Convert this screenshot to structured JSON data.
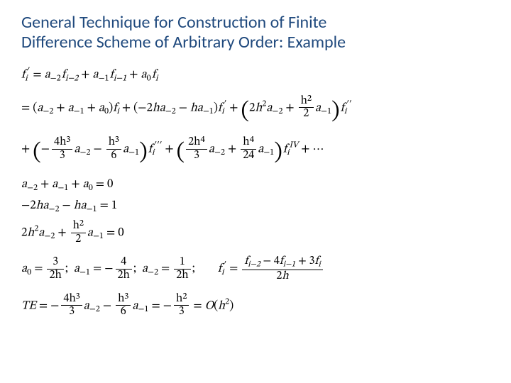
{
  "title_color": "#1f497d",
  "title_line1": "General Technique for Construction of Finite",
  "title_line2": "Difference Scheme of Arbitrary Order: Example",
  "eq1_lhs": "f",
  "eq1_lhs_sub": "i",
  "eq1_lhs_sup": "′",
  "eq1_rhs_a": "a",
  "eq1_rhs_f": "f",
  "subs": {
    "m2": "−2",
    "m1": "−1",
    "z": "0",
    "im2": "i−2",
    "im1": "i−1",
    "i": "i"
  },
  "frac_h2_2": {
    "num": "h²",
    "den": "2"
  },
  "frac_4h3_3": {
    "num": "4h³",
    "den": "3"
  },
  "frac_h3_6": {
    "num": "h³",
    "den": "6"
  },
  "frac_2h4_3": {
    "num": "2h⁴",
    "den": "3"
  },
  "frac_h4_24": {
    "num": "h⁴",
    "den": "24"
  },
  "sol_a0": {
    "num": "3",
    "den": "2h"
  },
  "sol_am1": {
    "num": "4",
    "den": "2h"
  },
  "sol_am2": {
    "num": "1",
    "den": "2h"
  },
  "result_frac": {
    "num": "fᵢ₋₂ − 4fᵢ₋₁ + 3fᵢ",
    "den": "2h"
  },
  "te_frac_h2_3": {
    "num": "h²",
    "den": "3"
  },
  "order": "O(h²)",
  "sys1": "a₋₂ + a₋₁ + a₀ = 0",
  "sys2": "−2ha₋₂ − ha₋₁ = 1"
}
